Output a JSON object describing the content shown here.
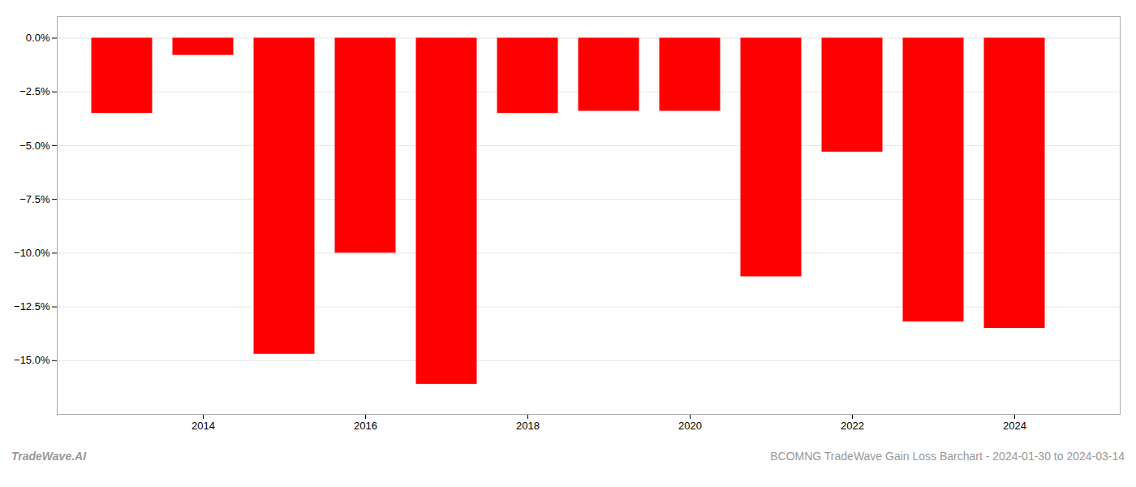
{
  "chart_data": {
    "type": "bar",
    "x": [
      2013,
      2014,
      2015,
      2016,
      2017,
      2018,
      2019,
      2020,
      2021,
      2022,
      2023,
      2024
    ],
    "values": [
      -3.5,
      -0.8,
      -14.7,
      -10.0,
      -16.1,
      -3.5,
      -3.4,
      -3.4,
      -11.1,
      -5.3,
      -13.2,
      -13.5
    ],
    "color": "#ff0000",
    "xlim": [
      2012.2,
      2025.3
    ],
    "xticks": [
      2014,
      2016,
      2018,
      2020,
      2022,
      2024
    ],
    "ylim": [
      -17.5,
      1.0
    ],
    "yticks": [
      {
        "value": 0.0,
        "label": "0.0%"
      },
      {
        "value": -2.5,
        "label": "−2.5%"
      },
      {
        "value": -5.0,
        "label": "−5.0%"
      },
      {
        "value": -7.5,
        "label": "−7.5%"
      },
      {
        "value": -10.0,
        "label": "−10.0%"
      },
      {
        "value": -12.5,
        "label": "−12.5%"
      },
      {
        "value": -15.0,
        "label": "−15.0%"
      }
    ],
    "grid": true,
    "annotations": [
      "TradeWave.AI",
      "BCOMNG TradeWave Gain Loss Barchart - 2024-01-30 to 2024-03-14"
    ]
  }
}
